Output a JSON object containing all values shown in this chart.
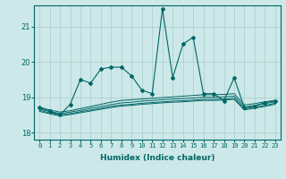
{
  "xlabel": "Humidex (Indice chaleur)",
  "ylabel": "",
  "xlim": [
    -0.5,
    23.5
  ],
  "ylim": [
    17.8,
    21.6
  ],
  "yticks": [
    18,
    19,
    20,
    21
  ],
  "xticks": [
    0,
    1,
    2,
    3,
    4,
    5,
    6,
    7,
    8,
    9,
    10,
    11,
    12,
    13,
    14,
    15,
    16,
    17,
    18,
    19,
    20,
    21,
    22,
    23
  ],
  "background_color": "#cce8e8",
  "grid_color": "#aacccc",
  "line_color": "#006666",
  "series": {
    "main": [
      18.7,
      18.6,
      18.5,
      18.8,
      19.5,
      19.4,
      19.8,
      19.85,
      19.85,
      19.6,
      19.2,
      19.1,
      21.5,
      19.55,
      20.5,
      20.7,
      19.1,
      19.1,
      18.9,
      19.55,
      18.7,
      18.75,
      18.85,
      18.9
    ],
    "smooth1": [
      18.72,
      18.64,
      18.58,
      18.62,
      18.68,
      18.74,
      18.8,
      18.86,
      18.91,
      18.93,
      18.95,
      18.97,
      18.99,
      19.01,
      19.03,
      19.05,
      19.07,
      19.07,
      19.08,
      19.1,
      18.78,
      18.82,
      18.87,
      18.91
    ],
    "smooth2": [
      18.67,
      18.6,
      18.54,
      18.58,
      18.63,
      18.69,
      18.74,
      18.79,
      18.84,
      18.86,
      18.89,
      18.91,
      18.93,
      18.95,
      18.96,
      18.98,
      19.0,
      19.0,
      19.01,
      19.03,
      18.72,
      18.77,
      18.82,
      18.87
    ],
    "smooth3": [
      18.63,
      18.56,
      18.5,
      18.54,
      18.59,
      18.64,
      18.69,
      18.74,
      18.78,
      18.8,
      18.83,
      18.85,
      18.87,
      18.89,
      18.9,
      18.92,
      18.94,
      18.94,
      18.95,
      18.97,
      18.67,
      18.72,
      18.77,
      18.83
    ],
    "smooth4": [
      18.6,
      18.53,
      18.47,
      18.51,
      18.56,
      18.61,
      18.66,
      18.71,
      18.75,
      18.77,
      18.8,
      18.82,
      18.84,
      18.86,
      18.87,
      18.89,
      18.91,
      18.91,
      18.92,
      18.94,
      18.64,
      18.69,
      18.74,
      18.8
    ]
  }
}
